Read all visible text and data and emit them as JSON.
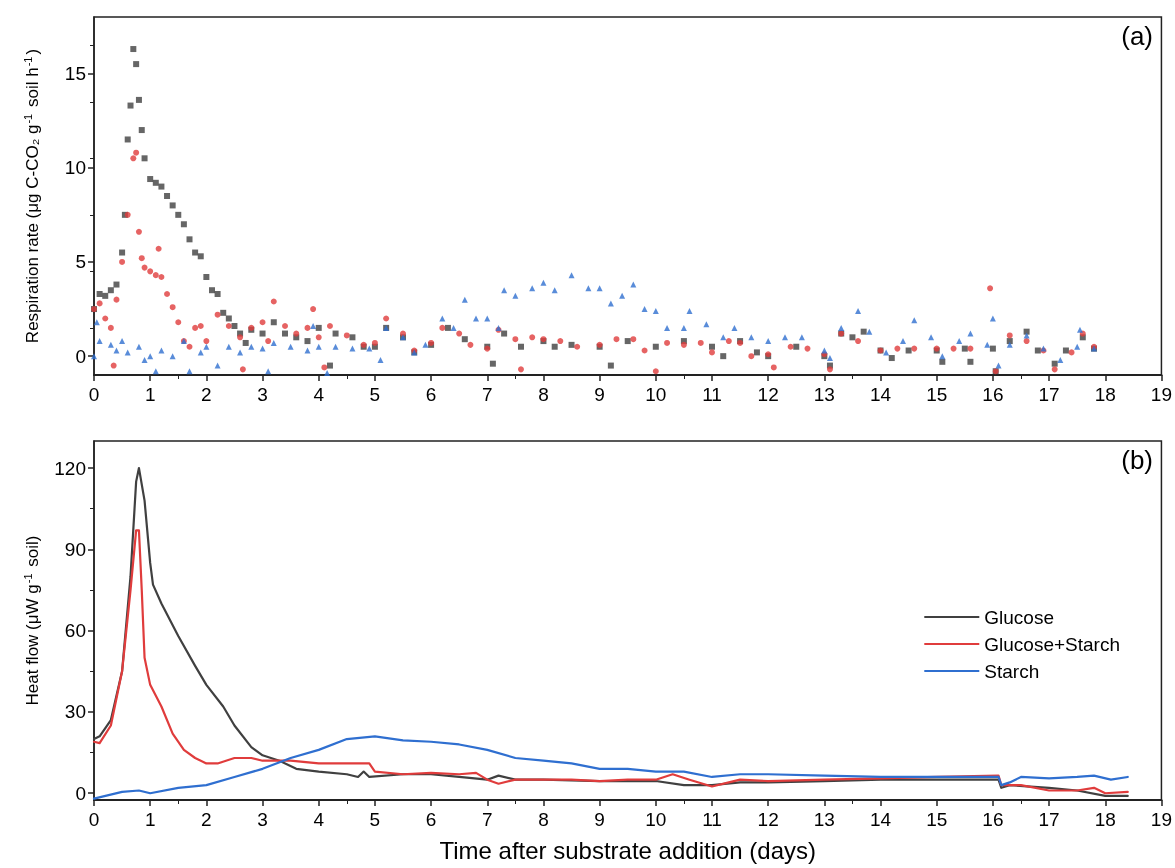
{
  "chart_data": [
    {
      "type": "scatter",
      "ylabel": "Respiration rate (μg C-CO₂ g$^{-1}$ soil h$^{-1}$)",
      "annotations": [
        "(a)"
      ],
      "xlim": [
        0,
        19
      ],
      "xticks": [
        0,
        1,
        2,
        3,
        4,
        5,
        6,
        7,
        8,
        9,
        10,
        11,
        12,
        13,
        14,
        15,
        16,
        17,
        18,
        19
      ],
      "ylim": [
        -1,
        18
      ],
      "yticks": [
        0,
        5,
        10,
        15
      ],
      "grid": false,
      "legend": false,
      "series": [
        {
          "color": "#404040",
          "marker": "square",
          "x": [
            0,
            0.1,
            0.2,
            0.3,
            0.4,
            0.5,
            0.55,
            0.6,
            0.65,
            0.7,
            0.75,
            0.8,
            0.85,
            0.9,
            1.0,
            1.1,
            1.2,
            1.3,
            1.4,
            1.5,
            1.6,
            1.7,
            1.8,
            1.9,
            2.0,
            2.1,
            2.2,
            2.3,
            2.4,
            2.5,
            2.6,
            2.7,
            2.8,
            3.0,
            3.2,
            3.4,
            3.6,
            3.8,
            4.0,
            4.2,
            4.3,
            4.6,
            4.8,
            5.0,
            5.2,
            5.5,
            5.7,
            6.0,
            6.3,
            6.6,
            7.0,
            7.1,
            7.3,
            7.6,
            8.0,
            8.2,
            8.5,
            9.0,
            9.2,
            9.5,
            10,
            10.5,
            11,
            11.2,
            11.5,
            11.8,
            12,
            12.5,
            13,
            13.1,
            13.3,
            13.5,
            13.7,
            14,
            14.2,
            14.5,
            15,
            15.1,
            15.5,
            15.6,
            16,
            16.05,
            16.3,
            16.6,
            16.8,
            17.1,
            17.3,
            17.6,
            17.8
          ],
          "values": [
            2.5,
            3.3,
            3.2,
            3.5,
            3.8,
            5.5,
            7.5,
            11.5,
            13.3,
            16.3,
            15.5,
            13.6,
            12,
            10.5,
            9.4,
            9.2,
            9.0,
            8.5,
            8.0,
            7.5,
            7.0,
            6.2,
            5.5,
            5.3,
            4.2,
            3.5,
            3.3,
            2.3,
            2.0,
            1.6,
            1.2,
            0.7,
            1.4,
            1.2,
            1.8,
            1.2,
            1.0,
            0.8,
            1.5,
            -0.5,
            1.2,
            1.0,
            0.5,
            0.5,
            1.5,
            1.0,
            0.2,
            0.6,
            1.5,
            0.9,
            0.5,
            -0.4,
            1.2,
            0.5,
            0.8,
            0.5,
            0.6,
            0.5,
            -0.5,
            0.8,
            0.5,
            0.8,
            0.5,
            0,
            0.8,
            0.2,
            0,
            0.5,
            0,
            -0.5,
            1.2,
            1.0,
            1.3,
            0.3,
            -0.1,
            0.3,
            0.3,
            -0.3,
            0.4,
            -0.3,
            0.4,
            -0.8,
            0.8,
            1.3,
            0.3,
            -0.4,
            0.3,
            1.0,
            0.4
          ]
        },
        {
          "color": "#e03c3c",
          "marker": "circle",
          "x": [
            0,
            0.1,
            0.2,
            0.3,
            0.35,
            0.4,
            0.5,
            0.6,
            0.7,
            0.75,
            0.8,
            0.85,
            0.9,
            1.0,
            1.1,
            1.15,
            1.2,
            1.3,
            1.4,
            1.5,
            1.6,
            1.7,
            1.8,
            1.9,
            2.0,
            2.2,
            2.4,
            2.6,
            2.65,
            2.8,
            3.0,
            3.1,
            3.2,
            3.4,
            3.6,
            3.8,
            3.9,
            4.0,
            4.1,
            4.2,
            4.5,
            4.8,
            5.0,
            5.2,
            5.5,
            5.7,
            6.0,
            6.2,
            6.5,
            6.7,
            7.0,
            7.2,
            7.5,
            7.6,
            7.8,
            8.0,
            8.3,
            8.6,
            9.0,
            9.3,
            9.6,
            9.8,
            10,
            10.2,
            10.5,
            10.8,
            11,
            11.3,
            11.5,
            11.7,
            12,
            12.1,
            12.4,
            12.7,
            13,
            13.1,
            13.3,
            13.6,
            14,
            14.3,
            14.6,
            15,
            15.3,
            15.6,
            15.95,
            16.05,
            16.3,
            16.6,
            16.9,
            17.1,
            17.4,
            17.6,
            17.8
          ],
          "values": [
            2.5,
            2.8,
            2.0,
            1.5,
            -0.5,
            3.0,
            5.0,
            7.5,
            10.5,
            10.8,
            6.6,
            5.2,
            4.7,
            4.5,
            4.3,
            5.7,
            4.2,
            3.3,
            2.6,
            1.8,
            0.8,
            0.5,
            1.5,
            1.6,
            0.8,
            2.2,
            1.6,
            1.0,
            -0.7,
            1.5,
            1.8,
            0.8,
            2.9,
            1.6,
            1.2,
            1.5,
            2.5,
            1.0,
            -0.6,
            1.6,
            1.1,
            0.6,
            0.7,
            2.0,
            1.2,
            0.3,
            0.7,
            1.5,
            1.2,
            0.6,
            0.4,
            1.4,
            0.9,
            -0.7,
            1.0,
            0.9,
            0.8,
            0.5,
            0.6,
            0.9,
            0.9,
            0.3,
            -0.8,
            0.7,
            0.6,
            0.7,
            0.2,
            0.8,
            0.7,
            0,
            0.1,
            -0.6,
            0.5,
            0.4,
            0.1,
            -0.7,
            1.2,
            0.8,
            0.3,
            0.4,
            0.4,
            0.4,
            0.4,
            0.4,
            3.6,
            -0.8,
            1.1,
            0.8,
            0.3,
            -0.7,
            0.2,
            1.2,
            0.5
          ]
        },
        {
          "color": "#2f6fd0",
          "marker": "triangle",
          "x": [
            0,
            0.05,
            0.1,
            0.3,
            0.4,
            0.5,
            0.6,
            0.8,
            0.9,
            1.0,
            1.1,
            1.2,
            1.4,
            1.6,
            1.7,
            1.9,
            2.0,
            2.2,
            2.4,
            2.6,
            2.8,
            3.0,
            3.1,
            3.2,
            3.5,
            3.8,
            3.9,
            4.0,
            4.15,
            4.3,
            4.6,
            4.9,
            5.1,
            5.2,
            5.5,
            5.7,
            5.9,
            6.2,
            6.4,
            6.6,
            6.8,
            7.0,
            7.2,
            7.3,
            7.5,
            7.8,
            8.0,
            8.2,
            8.5,
            8.8,
            9.0,
            9.2,
            9.4,
            9.6,
            9.8,
            10.0,
            10.2,
            10.5,
            10.6,
            10.9,
            11.2,
            11.4,
            11.7,
            12.0,
            12.3,
            12.6,
            13.0,
            13.1,
            13.3,
            13.6,
            13.8,
            14.1,
            14.4,
            14.6,
            14.9,
            15.1,
            15.4,
            15.6,
            15.9,
            16.0,
            16.1,
            16.3,
            16.6,
            16.9,
            17.2,
            17.5,
            17.55,
            17.8
          ],
          "values": [
            0,
            1.8,
            0.8,
            0.6,
            0.3,
            0.8,
            0.2,
            0.5,
            -0.2,
            0,
            -0.8,
            0.3,
            0,
            0.8,
            -0.8,
            0.2,
            0.5,
            -0.5,
            0.5,
            0.2,
            0.5,
            0.4,
            -0.8,
            0.7,
            0.5,
            0.3,
            1.6,
            0.5,
            -0.9,
            0.5,
            0.4,
            0.4,
            -0.2,
            1.5,
            1.0,
            0.2,
            0.6,
            2.0,
            1.5,
            3.0,
            2.0,
            2.0,
            1.5,
            3.5,
            3.2,
            3.6,
            3.9,
            3.5,
            4.3,
            3.6,
            3.6,
            2.8,
            3.2,
            3.8,
            2.5,
            2.4,
            1.5,
            1.5,
            2.4,
            1.7,
            1.0,
            1.5,
            1.0,
            0.8,
            1.0,
            1.0,
            0.3,
            -0.1,
            1.5,
            2.4,
            1.3,
            0.2,
            0.8,
            1.9,
            1.0,
            0,
            0.8,
            1.2,
            0.6,
            2.0,
            -0.5,
            0.6,
            1.1,
            0.4,
            -0.2,
            0.5,
            1.4,
            0.4
          ]
        }
      ]
    },
    {
      "type": "line",
      "xlabel": "Time after substrate addition (days)",
      "ylabel": "Heat flow (μW g$^{-1}$ soil)",
      "annotations": [
        "(b)"
      ],
      "xlim": [
        0,
        19
      ],
      "xticks": [
        0,
        1,
        2,
        3,
        4,
        5,
        6,
        7,
        8,
        9,
        10,
        11,
        12,
        13,
        14,
        15,
        16,
        17,
        18,
        19
      ],
      "ylim": [
        -2.5,
        130
      ],
      "yticks": [
        0,
        30,
        60,
        90,
        120
      ],
      "grid": false,
      "legend": "right",
      "marker": "none",
      "line_style": "solid",
      "series": [
        {
          "name": "Glucose",
          "color": "#404040",
          "x": [
            0,
            0.1,
            0.3,
            0.5,
            0.65,
            0.75,
            0.8,
            0.9,
            1.0,
            1.05,
            1.2,
            1.5,
            1.8,
            2.0,
            2.3,
            2.5,
            2.8,
            3.0,
            3.3,
            3.6,
            4.0,
            4.5,
            4.7,
            4.8,
            4.9,
            5.5,
            6,
            6.5,
            7,
            7.2,
            7.5,
            8,
            9,
            10,
            10.5,
            11,
            11.5,
            12,
            13,
            14,
            15,
            16.1,
            16.15,
            16.3,
            17,
            17.5,
            18,
            18.4
          ],
          "values": [
            20,
            21,
            27,
            45,
            80,
            115,
            120,
            108,
            85,
            77,
            70,
            58,
            47,
            40,
            32,
            25,
            17,
            14,
            12,
            9,
            8,
            7,
            6,
            8,
            6,
            7,
            7,
            6,
            5,
            6.5,
            5,
            5,
            4.5,
            4.5,
            3,
            3,
            4,
            4,
            4.5,
            5,
            5,
            5,
            2,
            3,
            2,
            1,
            -1,
            -1
          ]
        },
        {
          "name": "Glucose+Starch",
          "color": "#e03c3c",
          "x": [
            0,
            0.1,
            0.3,
            0.5,
            0.65,
            0.75,
            0.8,
            0.85,
            0.9,
            1.0,
            1.2,
            1.4,
            1.6,
            1.8,
            2.0,
            2.2,
            2.5,
            2.8,
            3.0,
            3.5,
            4.0,
            4.5,
            4.9,
            5.0,
            5.5,
            6,
            6.5,
            6.8,
            7.0,
            7.2,
            7.5,
            8,
            8.5,
            9,
            9.5,
            10,
            10.3,
            10.6,
            11,
            11.3,
            11.5,
            12,
            13,
            14,
            15,
            16.1,
            16.15,
            16.5,
            17,
            17.5,
            17.8,
            18,
            18.4
          ],
          "values": [
            19,
            18.5,
            25,
            45,
            75,
            97,
            97,
            75,
            50,
            40,
            32,
            22,
            16,
            13,
            11,
            11,
            13,
            13,
            12,
            12,
            11,
            11,
            11,
            8,
            7,
            7.5,
            7,
            7.5,
            5,
            3.5,
            5,
            5,
            5,
            4.5,
            5,
            5,
            7,
            5,
            2.5,
            4,
            5,
            4.5,
            5,
            5.5,
            6,
            6.5,
            3,
            3,
            1,
            1,
            2,
            0,
            0.5
          ]
        },
        {
          "name": "Starch",
          "color": "#2f6fd0",
          "x": [
            0,
            0.5,
            0.8,
            1.0,
            1.5,
            2.0,
            2.5,
            3.0,
            3.5,
            4.0,
            4.5,
            5.0,
            5.5,
            6.0,
            6.5,
            7.0,
            7.5,
            8,
            8.5,
            9,
            9.5,
            10,
            10.5,
            11,
            11.5,
            12,
            13,
            14,
            15,
            16,
            16.1,
            16.15,
            16.3,
            16.5,
            17,
            17.5,
            17.8,
            18.1,
            18.4
          ],
          "values": [
            -2,
            0.5,
            1,
            0,
            2,
            3,
            6,
            9,
            13,
            16,
            20,
            21,
            19.5,
            19,
            18,
            16,
            13,
            12,
            11,
            9,
            9,
            8,
            8,
            6,
            7,
            7,
            6.5,
            6,
            6,
            6,
            6,
            3,
            4,
            6,
            5.5,
            6,
            6.5,
            5,
            6
          ]
        }
      ]
    }
  ]
}
